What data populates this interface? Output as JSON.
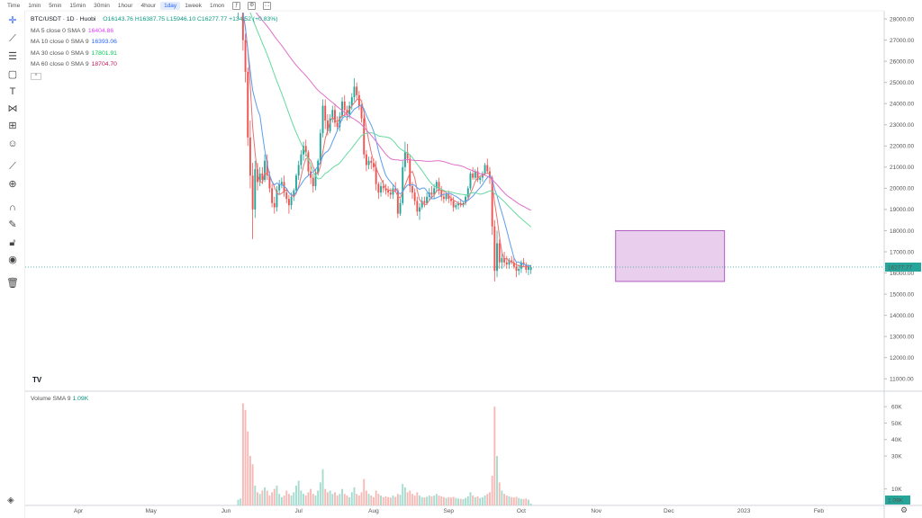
{
  "timeframes": [
    "Time",
    "1min",
    "5min",
    "15min",
    "30min",
    "1hour",
    "4hour",
    "1day",
    "1week",
    "1mon"
  ],
  "active_timeframe": "1day",
  "symbol": "BTC/USDT · 1D · Huobi",
  "ohlc": {
    "open": "O16143.76",
    "high": "H16387.75",
    "low": "L15946.10",
    "close": "C16277.77",
    "change": "+134.52 (+0.83%)"
  },
  "indicators": [
    {
      "label": "MA 5 close 0 SMA 9",
      "value": "16404.86",
      "color": "#e040fb"
    },
    {
      "label": "MA 10 close 0 SMA 9",
      "value": "16393.06",
      "color": "#2962ff"
    },
    {
      "label": "MA 30 close 0 SMA 9",
      "value": "17801.91",
      "color": "#00c853"
    },
    {
      "label": "MA 60 close 0 SMA 9",
      "value": "18704.70",
      "color": "#c2185b"
    }
  ],
  "collapse_glyph": "^",
  "volume_label": "Volume SMA 9",
  "volume_value": "1.09K",
  "tv_logo": "TV",
  "icons": [
    "crosshair-icon",
    "trendline-icon",
    "fib-icon",
    "rectangle-icon",
    "text-icon",
    "pattern-icon",
    "forecast-icon",
    "emoji-icon",
    "ruler-icon",
    "zoom-icon",
    "magnet-icon",
    "lock-draw-icon",
    "lock-icon",
    "eye-icon",
    "trash-icon",
    "layers-icon",
    "gear-icon"
  ],
  "colors": {
    "up": "#26a69a",
    "down": "#ef5350",
    "up_vol": "#a5dccf",
    "down_vol": "#f7b9b6",
    "box": "#ce93d8",
    "last_price": "#26a69a"
  },
  "chart_data": {
    "type": "candlestick",
    "price_axis": {
      "ticks": [
        "28000.00",
        "27000.00",
        "26000.00",
        "25000.00",
        "24000.00",
        "23000.00",
        "22000.00",
        "21000.00",
        "20000.00",
        "19000.00",
        "18000.00",
        "17000.00",
        "16000.00",
        "15000.00",
        "14000.00",
        "13000.00",
        "12000.00",
        "11000.00"
      ],
      "ylim": [
        10500,
        28300
      ],
      "last_price": 16277.77,
      "last_price_label": "16277.77"
    },
    "volume_axis": {
      "ticks": [
        "60K",
        "50K",
        "40K",
        "30K",
        "10K"
      ],
      "ylim": [
        0,
        65000
      ],
      "last_label": "1.09K"
    },
    "time_axis": {
      "labels": [
        "Apr",
        "May",
        "Jun",
        "Jul",
        "Aug",
        "Sep",
        "Oct",
        "Nov",
        "Dec",
        "2023",
        "Feb"
      ],
      "dates": [
        "2022-04-01",
        "2022-05-01",
        "2022-06-01",
        "2022-07-01",
        "2022-08-01",
        "2022-09-01",
        "2022-10-01",
        "2022-11-01",
        "2022-12-01",
        "2023-01-01",
        "2023-02-01"
      ],
      "range": [
        "2022-03-10",
        "2023-02-28"
      ]
    },
    "visible_candles_start": "2022-06-06",
    "candles": [
      [
        28400,
        29200,
        28000,
        28900
      ],
      [
        28900,
        29400,
        28600,
        29000
      ],
      [
        29000,
        29100,
        26500,
        27000
      ],
      [
        27000,
        27300,
        25000,
        25500
      ],
      [
        25500,
        25700,
        22000,
        22400
      ],
      [
        22400,
        23200,
        20000,
        20600
      ],
      [
        20600,
        21200,
        17600,
        19000
      ],
      [
        19000,
        21300,
        18600,
        20900
      ],
      [
        20900,
        21200,
        19900,
        20300
      ],
      [
        20300,
        21000,
        20100,
        20700
      ],
      [
        20700,
        21000,
        20200,
        20400
      ],
      [
        20400,
        21600,
        20300,
        21300
      ],
      [
        21300,
        21600,
        20400,
        20600
      ],
      [
        20600,
        20800,
        19800,
        20000
      ],
      [
        20000,
        20200,
        19100,
        19300
      ],
      [
        19300,
        19600,
        18800,
        19100
      ],
      [
        19100,
        20100,
        18900,
        19900
      ],
      [
        19900,
        20400,
        19700,
        20200
      ],
      [
        20200,
        20500,
        20000,
        20300
      ],
      [
        20300,
        20600,
        19600,
        19800
      ],
      [
        19800,
        20000,
        19300,
        19500
      ],
      [
        19500,
        19700,
        18800,
        19200
      ],
      [
        19200,
        19800,
        19000,
        19600
      ],
      [
        19600,
        20000,
        19400,
        19900
      ],
      [
        19900,
        20700,
        19800,
        20600
      ],
      [
        20600,
        21300,
        20400,
        21100
      ],
      [
        21100,
        21800,
        20900,
        21600
      ],
      [
        21600,
        22200,
        21300,
        22000
      ],
      [
        22000,
        22300,
        21500,
        21700
      ],
      [
        21700,
        21800,
        20600,
        20800
      ],
      [
        20800,
        21100,
        20200,
        20500
      ],
      [
        20500,
        20700,
        19800,
        20100
      ],
      [
        20100,
        20900,
        19900,
        20700
      ],
      [
        20700,
        21400,
        20600,
        21300
      ],
      [
        21300,
        22800,
        21100,
        22600
      ],
      [
        22600,
        24200,
        22400,
        23900
      ],
      [
        23900,
        24200,
        22800,
        23200
      ],
      [
        23200,
        23500,
        22500,
        22700
      ],
      [
        22700,
        23500,
        22600,
        23300
      ],
      [
        23300,
        23900,
        23100,
        23700
      ],
      [
        23700,
        24000,
        22900,
        23100
      ],
      [
        23100,
        23400,
        22700,
        22900
      ],
      [
        22900,
        23600,
        22700,
        23400
      ],
      [
        23400,
        24300,
        23200,
        24100
      ],
      [
        24100,
        24400,
        23400,
        23700
      ],
      [
        23700,
        23900,
        23200,
        23500
      ],
      [
        23500,
        24100,
        23300,
        23900
      ],
      [
        23900,
        24500,
        23700,
        24300
      ],
      [
        24300,
        25200,
        24100,
        24800
      ],
      [
        24800,
        25000,
        24200,
        24400
      ],
      [
        24400,
        24600,
        23700,
        23900
      ],
      [
        23900,
        24000,
        23100,
        23300
      ],
      [
        23300,
        23500,
        21400,
        21600
      ],
      [
        21600,
        21800,
        20800,
        21100
      ],
      [
        21100,
        21500,
        20900,
        21300
      ],
      [
        21300,
        21500,
        20900,
        21200
      ],
      [
        21200,
        21400,
        20800,
        21000
      ],
      [
        21000,
        21300,
        19900,
        20200
      ],
      [
        20200,
        20300,
        19500,
        19800
      ],
      [
        19800,
        20300,
        19600,
        20100
      ],
      [
        20100,
        20400,
        19800,
        20000
      ],
      [
        20000,
        20200,
        19700,
        19900
      ],
      [
        19900,
        20100,
        19600,
        19800
      ],
      [
        19800,
        20000,
        19500,
        19700
      ],
      [
        19700,
        20200,
        19500,
        20000
      ],
      [
        20000,
        20300,
        19800,
        19900
      ],
      [
        19900,
        20000,
        18600,
        18800
      ],
      [
        18800,
        19500,
        18700,
        19300
      ],
      [
        19300,
        21300,
        19200,
        21000
      ],
      [
        21000,
        22200,
        20800,
        21700
      ],
      [
        21700,
        22100,
        21200,
        21400
      ],
      [
        21400,
        21600,
        19800,
        20100
      ],
      [
        20100,
        20300,
        19500,
        19800
      ],
      [
        19800,
        20000,
        19200,
        19400
      ],
      [
        19400,
        19600,
        18700,
        18900
      ],
      [
        18900,
        19300,
        18500,
        19100
      ],
      [
        19100,
        19600,
        19000,
        19400
      ],
      [
        19400,
        19600,
        19100,
        19300
      ],
      [
        19300,
        19800,
        19200,
        19600
      ],
      [
        19600,
        20000,
        19400,
        19800
      ],
      [
        19800,
        20100,
        19500,
        19700
      ],
      [
        19700,
        20200,
        19500,
        20000
      ],
      [
        20000,
        20400,
        19800,
        20300
      ],
      [
        20300,
        20500,
        19700,
        19900
      ],
      [
        19900,
        20100,
        19400,
        19600
      ],
      [
        19600,
        19800,
        19300,
        19500
      ],
      [
        19500,
        19800,
        19400,
        19700
      ],
      [
        19700,
        19900,
        19300,
        19500
      ],
      [
        19500,
        19700,
        19200,
        19400
      ],
      [
        19400,
        19600,
        18900,
        19100
      ],
      [
        19100,
        19300,
        19000,
        19200
      ],
      [
        19200,
        19400,
        19000,
        19300
      ],
      [
        19300,
        19500,
        19100,
        19200
      ],
      [
        19200,
        19400,
        19100,
        19300
      ],
      [
        19300,
        19700,
        19200,
        19600
      ],
      [
        19600,
        20100,
        19500,
        20000
      ],
      [
        20000,
        20800,
        19900,
        20700
      ],
      [
        20700,
        21000,
        20400,
        20500
      ],
      [
        20500,
        20900,
        20400,
        20800
      ],
      [
        20800,
        21000,
        20300,
        20400
      ],
      [
        20400,
        20600,
        20200,
        20500
      ],
      [
        20500,
        20800,
        20300,
        20700
      ],
      [
        20700,
        21200,
        20600,
        21100
      ],
      [
        21100,
        21400,
        20700,
        20800
      ],
      [
        20800,
        21000,
        20200,
        20500
      ],
      [
        20500,
        20600,
        17800,
        18200
      ],
      [
        18200,
        18500,
        15600,
        16100
      ],
      [
        16100,
        18000,
        15800,
        17400
      ],
      [
        17400,
        17600,
        16200,
        16500
      ],
      [
        16500,
        16900,
        16200,
        16700
      ],
      [
        16700,
        17000,
        16300,
        16500
      ],
      [
        16500,
        16800,
        16200,
        16400
      ],
      [
        16400,
        16700,
        16200,
        16600
      ],
      [
        16600,
        16800,
        16400,
        16500
      ],
      [
        16500,
        16700,
        16200,
        16300
      ],
      [
        16300,
        16500,
        15800,
        16100
      ],
      [
        16100,
        16400,
        15900,
        16200
      ],
      [
        16200,
        16600,
        16000,
        16500
      ],
      [
        16500,
        16700,
        16300,
        16400
      ],
      [
        16400,
        16500,
        16000,
        16150
      ],
      [
        16150,
        16400,
        15900,
        16300
      ],
      [
        16140,
        16390,
        15950,
        16280
      ]
    ],
    "volume": [
      3500,
      4200,
      62000,
      58000,
      45000,
      30000,
      25000,
      12000,
      8000,
      7000,
      9000,
      11000,
      9000,
      6000,
      8000,
      10000,
      12000,
      7000,
      5000,
      6000,
      9000,
      7000,
      6000,
      8000,
      12000,
      15000,
      9000,
      7000,
      6000,
      8000,
      10000,
      7000,
      6000,
      9000,
      14000,
      22000,
      10000,
      8000,
      9000,
      7000,
      8000,
      6000,
      7000,
      10000,
      7000,
      6000,
      5000,
      8000,
      11000,
      7000,
      6000,
      8000,
      16000,
      9000,
      7000,
      6000,
      5000,
      9000,
      7000,
      6000,
      5000,
      5500,
      5000,
      4800,
      6000,
      5200,
      7000,
      6500,
      13000,
      11000,
      8000,
      9000,
      7000,
      6000,
      8000,
      6000,
      5000,
      4800,
      5200,
      6000,
      5500,
      6000,
      7000,
      6000,
      5500,
      5000,
      4500,
      5000,
      4800,
      5200,
      4500,
      4200,
      4000,
      3800,
      4500,
      5500,
      8000,
      6000,
      5000,
      5500,
      4500,
      5000,
      6000,
      7000,
      8000,
      18000,
      60000,
      30000,
      14000,
      9000,
      7000,
      6000,
      5500,
      5000,
      4800,
      5200,
      4500,
      4000,
      3800,
      4200,
      3500,
      1090
    ],
    "ma_lines": [
      {
        "name": "MA 5",
        "color": "#e57373",
        "period": 5
      },
      {
        "name": "MA 10",
        "color": "#5c9ded",
        "period": 10
      },
      {
        "name": "MA 30",
        "color": "#66d9a0",
        "period": 30
      },
      {
        "name": "MA 60",
        "color": "#e070c8",
        "period": 60
      }
    ],
    "highlight_box": {
      "from": "2022-11-09",
      "to": "2022-12-24",
      "low": 15600,
      "high": 18000
    }
  }
}
